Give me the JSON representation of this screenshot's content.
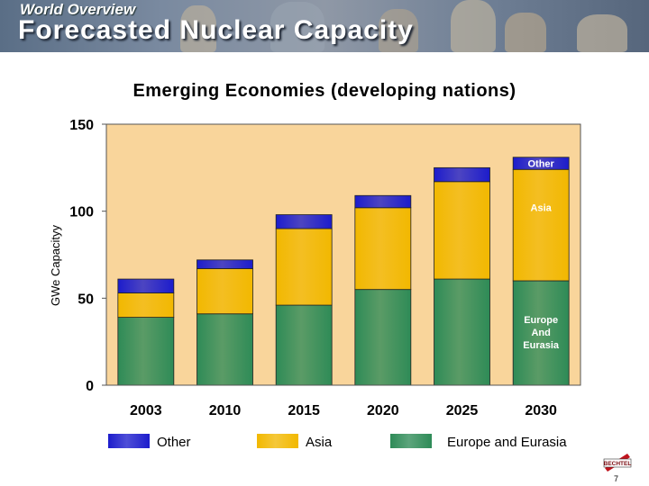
{
  "header": {
    "kicker": "World Overview",
    "title": "Forecasted Nuclear Capacity"
  },
  "chart_data": {
    "type": "bar",
    "stacked": true,
    "title": "Emerging Economies (developing nations)",
    "ylabel": "GWe Capacityy",
    "xlabel": "",
    "ylim": [
      0,
      150
    ],
    "yticks": [
      0,
      50,
      100,
      150
    ],
    "categories": [
      "2003",
      "2010",
      "2015",
      "2020",
      "2025",
      "2030"
    ],
    "series": [
      {
        "name": "Europe and Eurasia",
        "color": "#2e8b57",
        "values": [
          39,
          41,
          46,
          55,
          61,
          60
        ]
      },
      {
        "name": "Asia",
        "color": "#f2b800",
        "values": [
          14,
          26,
          44,
          47,
          56,
          64
        ]
      },
      {
        "name": "Other",
        "color": "#1c1ccc",
        "values": [
          8,
          5,
          8,
          7,
          8,
          7
        ]
      }
    ],
    "annotations": [
      {
        "category": "2030",
        "series": "Other",
        "lines": [
          "Other"
        ]
      },
      {
        "category": "2030",
        "series": "Asia",
        "lines": [
          "Asia"
        ]
      },
      {
        "category": "2030",
        "series": "Europe and Eurasia",
        "lines": [
          "Europe",
          "And",
          "Eurasia"
        ]
      }
    ],
    "legend": {
      "position": "bottom",
      "order": [
        "Other",
        "Asia",
        "Europe and Eurasia"
      ]
    },
    "plot_background": "#f9d59b",
    "grid": false
  },
  "footer": {
    "page_number": "7",
    "logo_text": "BECHTEL"
  }
}
